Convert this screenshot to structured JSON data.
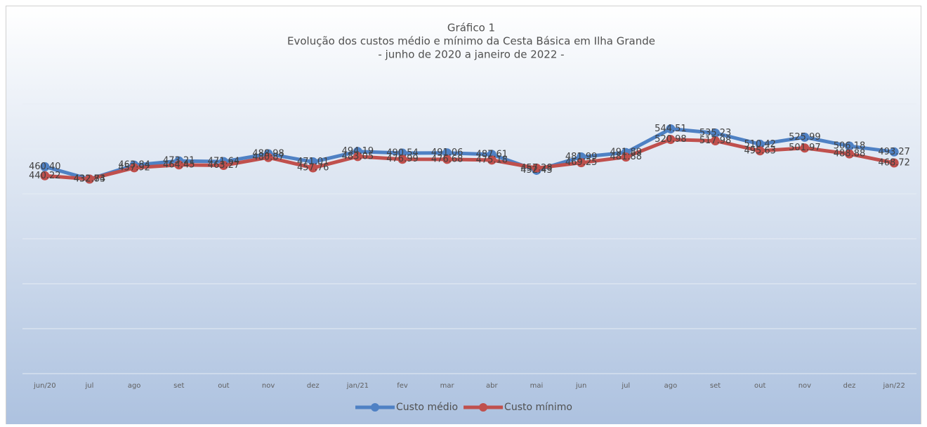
{
  "chart_data": {
    "type": "line",
    "title": "Gráfico 1",
    "subtitle": [
      "Evolução dos custos médio e mínimo da Cesta Básica em Ilha Grande",
      "- junho de 2020 a janeiro de 2022 -"
    ],
    "categories": [
      "jun/20",
      "jul",
      "ago",
      "set",
      "out",
      "nov",
      "dez",
      "jan/21",
      "fev",
      "mar",
      "abr",
      "mai",
      "jun",
      "jul",
      "ago",
      "set",
      "out",
      "nov",
      "dez",
      "jan/22"
    ],
    "series": [
      {
        "name": "Custo médio",
        "color": "#4f81c4",
        "values": [
          460.4,
          432.73,
          463.84,
          473.21,
          471.64,
          488.98,
          471.01,
          494.19,
          490.54,
          491.06,
          487.61,
          452.43,
          481.99,
          491.89,
          544.51,
          535.23,
          510.42,
          525.99,
          506.18,
          493.27
        ],
        "value_labels": [
          "460.40",
          "432.73",
          "463.84",
          "473.21",
          "471.64",
          "488.98",
          "471.01",
          "494.19",
          "490.54",
          "491.06",
          "487.61",
          "452.43",
          "481.99",
          "491.89",
          "544.51",
          "535.23",
          "510.42",
          "525.99",
          "506.18",
          "493.27"
        ]
      },
      {
        "name": "Custo mínimo",
        "color": "#c0504d",
        "values": [
          440.22,
          432.84,
          457.92,
          464.45,
          463.27,
          480.87,
          457.76,
          483.05,
          476.99,
          476.68,
          475.18,
          457.28,
          469.25,
          481.88,
          520.98,
          517.98,
          495.63,
          501.97,
          488.88,
          468.72
        ],
        "value_labels": [
          "440.22",
          "432.84",
          "457.92",
          "464.45",
          "463.27",
          "480.87",
          "457.76",
          "483.05",
          "476.99",
          "476.68",
          "475.18",
          "457.28",
          "469.25",
          "481.88",
          "520.98",
          "517.98",
          "495.63",
          "501.97",
          "488.88",
          "468.72"
        ]
      }
    ],
    "ylim": [
      0,
      600
    ],
    "yticks": [
      0,
      100,
      200,
      300,
      400,
      500,
      600
    ],
    "grid": true,
    "legend": "bottom"
  }
}
